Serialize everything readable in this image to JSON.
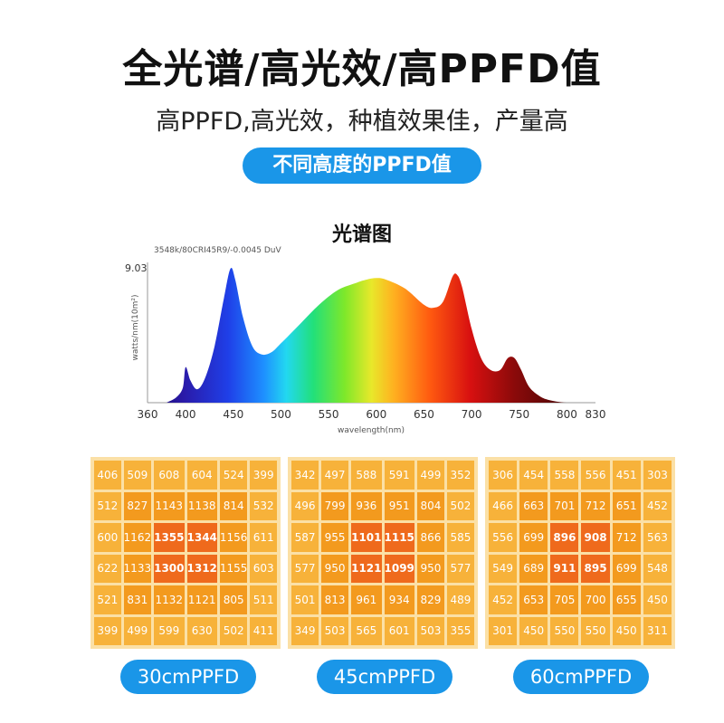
{
  "header": {
    "title": "全光谱/高光效/高PPFD值",
    "subtitle": "高PPFD,高光效，种植效果佳，产量高",
    "pill": "不同高度的PPFD值"
  },
  "chart_data": [
    {
      "type": "area",
      "title": "光谱图",
      "annotation": "3548k/80CRI45R9/-0.0045 DuV",
      "xlabel": "wavelength(nm)",
      "ylabel": "watts/nm(10m²)",
      "y_max_label": "9.03",
      "xlim": [
        360,
        830
      ],
      "ylim": [
        0,
        9.03
      ],
      "x_ticks": [
        "360",
        "400",
        "450",
        "500",
        "550",
        "600",
        "650",
        "700",
        "750",
        "800",
        "830"
      ],
      "x": [
        380,
        390,
        397,
        400,
        405,
        412,
        420,
        430,
        440,
        447,
        452,
        460,
        470,
        480,
        490,
        500,
        520,
        540,
        560,
        580,
        590,
        600,
        610,
        630,
        650,
        660,
        670,
        680,
        685,
        690,
        700,
        710,
        720,
        730,
        738,
        745,
        752,
        760,
        770,
        780,
        800,
        830
      ],
      "y": [
        0,
        0.35,
        1.0,
        2.4,
        1.5,
        0.9,
        1.6,
        3.7,
        7.0,
        9.03,
        8.3,
        5.8,
        3.8,
        3.25,
        3.4,
        4.0,
        5.3,
        6.6,
        7.6,
        8.1,
        8.3,
        8.4,
        8.3,
        7.7,
        6.6,
        6.4,
        6.8,
        8.5,
        8.6,
        7.8,
        5.0,
        3.0,
        2.2,
        2.2,
        3.0,
        3.0,
        2.2,
        1.1,
        0.5,
        0.2,
        0,
        0
      ]
    },
    {
      "type": "table",
      "label": "30cmPPFD",
      "rows": [
        [
          406,
          509,
          608,
          604,
          524,
          399
        ],
        [
          512,
          827,
          1143,
          1138,
          814,
          532
        ],
        [
          600,
          1162,
          1355,
          1344,
          1156,
          611
        ],
        [
          622,
          1133,
          1300,
          1312,
          1155,
          603
        ],
        [
          521,
          831,
          1132,
          1121,
          805,
          511
        ],
        [
          399,
          499,
          599,
          630,
          502,
          411
        ]
      ]
    },
    {
      "type": "table",
      "label": "45cmPPFD",
      "rows": [
        [
          342,
          497,
          588,
          591,
          499,
          352
        ],
        [
          496,
          799,
          936,
          951,
          804,
          502
        ],
        [
          587,
          955,
          1101,
          1115,
          866,
          585
        ],
        [
          577,
          950,
          1121,
          1099,
          950,
          577
        ],
        [
          501,
          813,
          961,
          934,
          829,
          489
        ],
        [
          349,
          503,
          565,
          601,
          503,
          355
        ]
      ]
    },
    {
      "type": "table",
      "label": "60cmPPFD",
      "rows": [
        [
          306,
          454,
          558,
          556,
          451,
          303
        ],
        [
          466,
          663,
          701,
          712,
          651,
          452
        ],
        [
          556,
          699,
          896,
          908,
          712,
          563
        ],
        [
          549,
          689,
          911,
          895,
          699,
          548
        ],
        [
          452,
          653,
          705,
          700,
          655,
          450
        ],
        [
          301,
          450,
          550,
          550,
          450,
          311
        ]
      ]
    }
  ]
}
